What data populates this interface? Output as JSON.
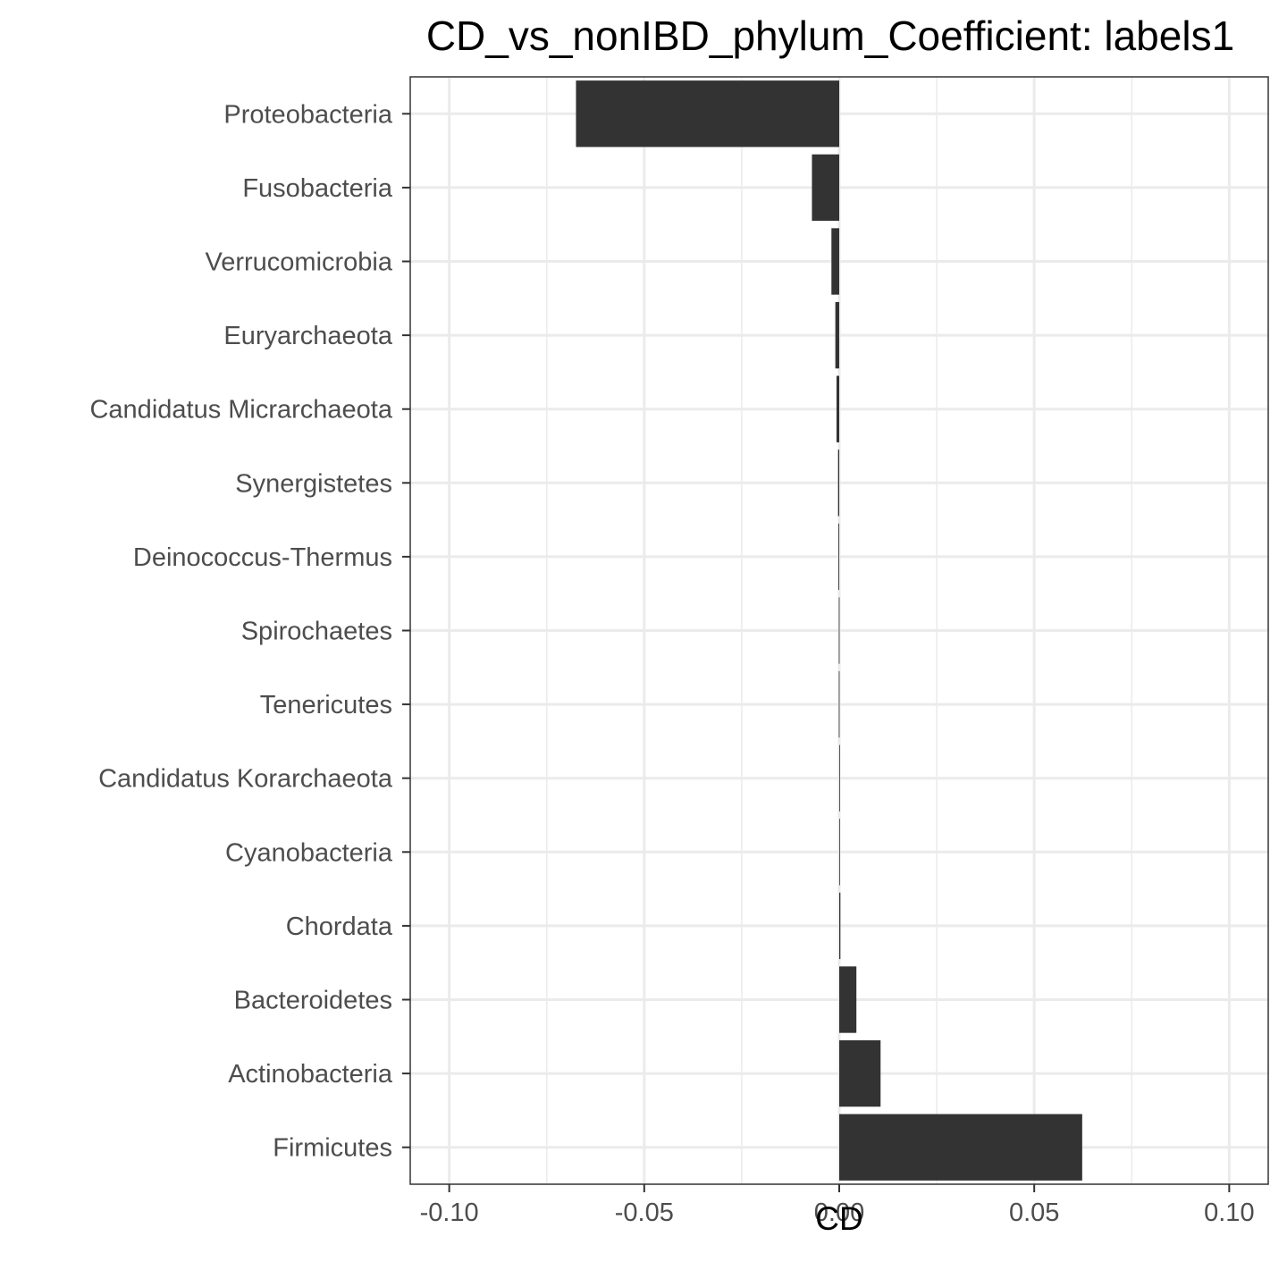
{
  "chart_data": {
    "type": "bar",
    "orientation": "horizontal",
    "title": "CD_vs_nonIBD_phylum_Coefficient: labels1",
    "xlabel": "CD",
    "ylabel": "",
    "categories": [
      "Proteobacteria",
      "Fusobacteria",
      "Verrucomicrobia",
      "Euryarchaeota",
      "Candidatus Micrarchaeota",
      "Synergistetes",
      "Deinococcus-Thermus",
      "Spirochaetes",
      "Tenericutes",
      "Candidatus Korarchaeota",
      "Cyanobacteria",
      "Chordata",
      "Bacteroidetes",
      "Actinobacteria",
      "Firmicutes"
    ],
    "values": [
      -0.0675,
      -0.007,
      -0.002,
      -0.001,
      -0.0007,
      -0.0003,
      -0.0002,
      -0.0001,
      -0.0001,
      0.0001,
      0.0001,
      0.0003,
      0.0044,
      0.0106,
      0.0623
    ],
    "xlim": [
      -0.11,
      0.11
    ],
    "xticks": [
      -0.1,
      -0.05,
      0.0,
      0.05,
      0.1
    ],
    "xtick_labels": [
      "-0.10",
      "-0.05",
      "0.00",
      "0.05",
      "0.10"
    ],
    "grid": true,
    "legend": "none",
    "colors": {
      "bar": "#333333",
      "grid_major": "#ebebeb",
      "grid_minor": "#ebebeb",
      "panel_border": "#333333",
      "text": "#4d4d4d"
    }
  }
}
